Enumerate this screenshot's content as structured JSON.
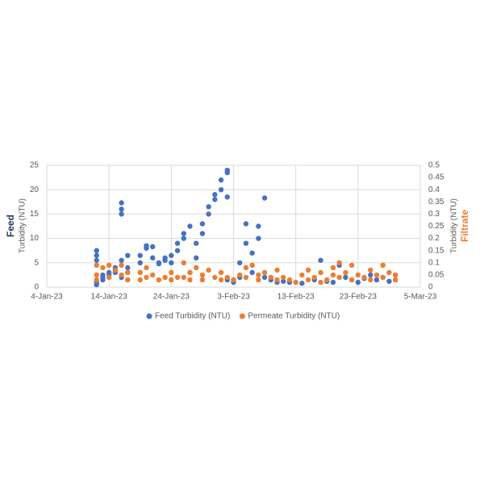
{
  "chart_data": {
    "type": "scatter",
    "ylabel_title": "Feed",
    "ylabel": "Turbidity (NTU)",
    "y2label": "Turbidity (NTU)",
    "y2label_title": "Filtrate",
    "xlim": [
      "2023-01-04",
      "2023-03-05"
    ],
    "xticks": [
      {
        "value": "2023-01-04",
        "label": "4-Jan-23"
      },
      {
        "value": "2023-01-14",
        "label": "14-Jan-23"
      },
      {
        "value": "2023-01-24",
        "label": "24-Jan-23"
      },
      {
        "value": "2023-02-03",
        "label": "3-Feb-23"
      },
      {
        "value": "2023-02-13",
        "label": "13-Feb-23"
      },
      {
        "value": "2023-02-23",
        "label": "23-Feb-23"
      },
      {
        "value": "2023-03-05",
        "label": "5-Mar-23"
      }
    ],
    "ylim": [
      0,
      25
    ],
    "yticks": [
      0,
      5,
      10,
      15,
      20,
      25
    ],
    "y2lim": [
      0,
      0.5
    ],
    "y2ticks": [
      0,
      0.05,
      0.1,
      0.15,
      0.2,
      0.25,
      0.3,
      0.35,
      0.4,
      0.45,
      0.5
    ],
    "grid": true,
    "legend": "bottom",
    "series": [
      {
        "name": "Feed Turbidity (NTU)",
        "color": "#4472c4",
        "x": [
          "2023-01-12",
          "2023-01-12",
          "2023-01-12",
          "2023-01-12",
          "2023-01-12",
          "2023-01-13",
          "2023-01-13",
          "2023-01-13",
          "2023-01-14",
          "2023-01-14",
          "2023-01-15",
          "2023-01-15",
          "2023-01-15",
          "2023-01-16",
          "2023-01-16",
          "2023-01-16",
          "2023-01-16",
          "2023-01-16",
          "2023-01-17",
          "2023-01-17",
          "2023-01-17",
          "2023-01-17",
          "2023-01-19",
          "2023-01-19",
          "2023-01-20",
          "2023-01-20",
          "2023-01-21",
          "2023-01-21",
          "2023-01-22",
          "2023-01-22",
          "2023-01-23",
          "2023-01-23",
          "2023-01-24",
          "2023-01-24",
          "2023-01-25",
          "2023-01-25",
          "2023-01-26",
          "2023-01-26",
          "2023-01-27",
          "2023-01-27",
          "2023-01-28",
          "2023-01-28",
          "2023-01-29",
          "2023-01-29",
          "2023-01-30",
          "2023-01-30",
          "2023-01-31",
          "2023-01-31",
          "2023-02-01",
          "2023-02-01",
          "2023-02-02",
          "2023-02-02",
          "2023-02-02",
          "2023-02-02",
          "2023-02-03",
          "2023-02-03",
          "2023-02-04",
          "2023-02-04",
          "2023-02-05",
          "2023-02-05",
          "2023-02-06",
          "2023-02-06",
          "2023-02-07",
          "2023-02-07",
          "2023-02-08",
          "2023-02-08",
          "2023-02-09",
          "2023-02-10",
          "2023-02-11",
          "2023-02-12",
          "2023-02-14",
          "2023-02-16",
          "2023-02-17",
          "2023-02-18",
          "2023-02-19",
          "2023-02-20",
          "2023-02-21",
          "2023-02-22",
          "2023-02-23",
          "2023-02-24",
          "2023-02-25",
          "2023-02-26",
          "2023-02-27",
          "2023-02-28",
          "2023-03-01",
          "2023-03-01"
        ],
        "values": [
          0.5,
          1,
          7.5,
          6.5,
          5.5,
          1.5,
          2,
          2.5,
          2.5,
          3,
          3,
          3.5,
          4,
          17.3,
          16,
          15,
          2,
          5.5,
          1.5,
          4,
          6.5,
          3,
          5,
          6.5,
          8,
          8.5,
          8.3,
          6,
          5,
          4.8,
          5.5,
          6,
          6.5,
          5,
          7.5,
          9,
          10,
          11,
          12.5,
          3,
          6,
          9,
          11,
          13,
          15,
          16.5,
          18,
          19,
          20,
          22,
          23.5,
          24,
          18.5,
          1.5,
          1,
          1.5,
          2,
          5,
          9,
          13,
          3,
          7,
          10,
          12.5,
          18.3,
          2,
          1.5,
          1,
          1.2,
          1,
          0.8,
          1.5,
          5.5,
          1.2,
          1,
          4.5,
          2,
          1.5,
          1,
          1.8,
          2.5,
          1.5,
          2,
          1.2,
          1.5,
          2.5
        ]
      },
      {
        "name": "Permeate Turbidity (NTU)",
        "color": "#ed7d31",
        "axis": "y2",
        "x": [
          "2023-01-12",
          "2023-01-12",
          "2023-01-12",
          "2023-01-13",
          "2023-01-14",
          "2023-01-14",
          "2023-01-15",
          "2023-01-16",
          "2023-01-16",
          "2023-01-17",
          "2023-01-17",
          "2023-01-19",
          "2023-01-19",
          "2023-01-20",
          "2023-01-20",
          "2023-01-21",
          "2023-01-22",
          "2023-01-23",
          "2023-01-24",
          "2023-01-24",
          "2023-01-25",
          "2023-01-26",
          "2023-01-26",
          "2023-01-27",
          "2023-01-27",
          "2023-01-28",
          "2023-01-29",
          "2023-01-29",
          "2023-01-30",
          "2023-01-31",
          "2023-02-01",
          "2023-02-01",
          "2023-02-02",
          "2023-02-03",
          "2023-02-04",
          "2023-02-05",
          "2023-02-05",
          "2023-02-06",
          "2023-02-07",
          "2023-02-07",
          "2023-02-08",
          "2023-02-09",
          "2023-02-10",
          "2023-02-10",
          "2023-02-11",
          "2023-02-12",
          "2023-02-13",
          "2023-02-14",
          "2023-02-15",
          "2023-02-15",
          "2023-02-16",
          "2023-02-17",
          "2023-02-17",
          "2023-02-18",
          "2023-02-19",
          "2023-02-19",
          "2023-02-20",
          "2023-02-20",
          "2023-02-21",
          "2023-02-22",
          "2023-02-22",
          "2023-02-23",
          "2023-02-24",
          "2023-02-25",
          "2023-02-25",
          "2023-02-26",
          "2023-02-27",
          "2023-02-27",
          "2023-02-28",
          "2023-03-01",
          "2023-03-01"
        ],
        "values": [
          0.09,
          0.05,
          0.03,
          0.08,
          0.09,
          0.04,
          0.07,
          0.09,
          0.05,
          0.06,
          0.03,
          0.06,
          0.03,
          0.08,
          0.04,
          0.05,
          0.03,
          0.04,
          0.03,
          0.06,
          0.04,
          0.1,
          0.04,
          0.06,
          0.03,
          0.08,
          0.05,
          0.03,
          0.07,
          0.04,
          0.06,
          0.03,
          0.04,
          0.03,
          0.05,
          0.08,
          0.04,
          0.09,
          0.05,
          0.03,
          0.06,
          0.04,
          0.03,
          0.07,
          0.04,
          0.03,
          0.02,
          0.05,
          0.07,
          0.03,
          0.04,
          0.06,
          0.02,
          0.03,
          0.08,
          0.05,
          0.1,
          0.04,
          0.06,
          0.09,
          0.03,
          0.05,
          0.04,
          0.07,
          0.03,
          0.05,
          0.09,
          0.04,
          0.06,
          0.03,
          0.05
        ]
      }
    ]
  }
}
